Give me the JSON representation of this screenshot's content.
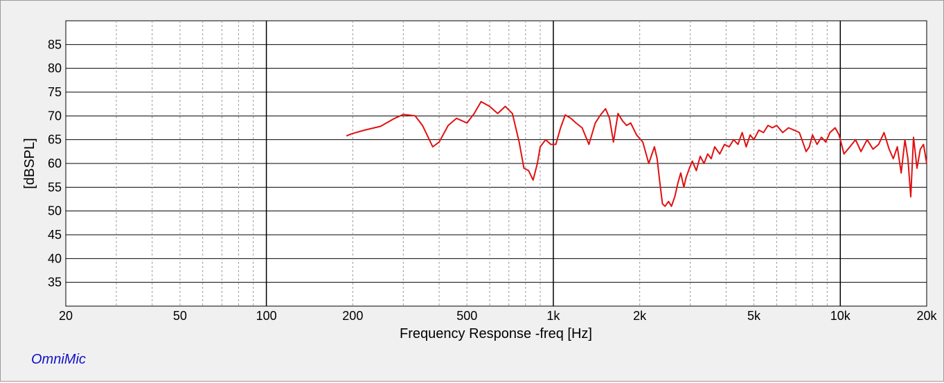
{
  "brand": "OmniMic",
  "colors": {
    "trace": "#e01010",
    "background": "#f0f0f0",
    "plot": "#ffffff",
    "grid_major": "#000000",
    "grid_minor": "#9a9a9a",
    "brand": "#1010c8"
  },
  "chart_data": {
    "type": "line",
    "xlabel": "Frequency Response -freq [Hz]",
    "ylabel": "[dBSPL]",
    "x_scale": "log",
    "xlim": [
      20,
      20000
    ],
    "ylim": [
      30,
      90
    ],
    "x_ticks": [
      {
        "value": 20,
        "label": "20"
      },
      {
        "value": 50,
        "label": "50"
      },
      {
        "value": 100,
        "label": "100"
      },
      {
        "value": 200,
        "label": "200"
      },
      {
        "value": 500,
        "label": "500"
      },
      {
        "value": 1000,
        "label": "1k"
      },
      {
        "value": 2000,
        "label": "2k"
      },
      {
        "value": 5000,
        "label": "5k"
      },
      {
        "value": 10000,
        "label": "10k"
      },
      {
        "value": 20000,
        "label": "20k"
      }
    ],
    "y_ticks": [
      35,
      40,
      45,
      50,
      55,
      60,
      65,
      70,
      75,
      80,
      85
    ],
    "grid": true,
    "series": [
      {
        "x": [
          190,
          200,
          220,
          250,
          280,
          300,
          330,
          350,
          380,
          400,
          430,
          460,
          500,
          530,
          560,
          600,
          640,
          680,
          720,
          760,
          790,
          820,
          850,
          880,
          900,
          940,
          980,
          1020,
          1060,
          1100,
          1150,
          1200,
          1260,
          1330,
          1400,
          1460,
          1520,
          1570,
          1620,
          1680,
          1740,
          1800,
          1860,
          1950,
          2050,
          2150,
          2250,
          2300,
          2350,
          2400,
          2450,
          2520,
          2580,
          2650,
          2720,
          2780,
          2850,
          2900,
          2980,
          3050,
          3150,
          3250,
          3350,
          3450,
          3550,
          3650,
          3800,
          3950,
          4100,
          4250,
          4400,
          4550,
          4700,
          4850,
          5000,
          5200,
          5400,
          5600,
          5800,
          6000,
          6300,
          6600,
          6900,
          7200,
          7400,
          7600,
          7800,
          8000,
          8300,
          8600,
          8900,
          9200,
          9600,
          9900,
          10300,
          10800,
          11300,
          11800,
          12400,
          13000,
          13600,
          14200,
          14800,
          15300,
          15800,
          16300,
          16800,
          17200,
          17600,
          18000,
          18500,
          19000,
          19500,
          20000
        ],
        "y": [
          65.8,
          66.3,
          67.0,
          67.8,
          69.5,
          70.3,
          70.0,
          68.0,
          63.5,
          64.5,
          68.0,
          69.5,
          68.5,
          70.5,
          73.0,
          72.0,
          70.5,
          72.0,
          70.5,
          64.5,
          59.0,
          58.5,
          56.5,
          60.0,
          63.5,
          65.0,
          64.0,
          64.0,
          67.5,
          70.2,
          69.5,
          68.5,
          67.5,
          64.0,
          68.5,
          70.2,
          71.5,
          69.5,
          64.5,
          70.5,
          69.0,
          68.0,
          68.5,
          66.0,
          64.5,
          60.0,
          63.5,
          61.0,
          56.0,
          51.5,
          51.0,
          52.0,
          51.0,
          53.0,
          56.0,
          58.0,
          55.0,
          57.0,
          59.0,
          60.5,
          58.5,
          61.5,
          60.0,
          62.0,
          61.0,
          63.5,
          62.0,
          64.0,
          63.5,
          65.0,
          64.0,
          66.5,
          63.5,
          66.0,
          65.0,
          67.0,
          66.5,
          68.0,
          67.5,
          68.0,
          66.5,
          67.5,
          67.0,
          66.5,
          64.5,
          62.5,
          63.5,
          66.0,
          64.0,
          65.5,
          64.5,
          66.5,
          67.5,
          66.0,
          62.0,
          63.5,
          65.0,
          62.5,
          65.0,
          63.0,
          64.0,
          66.5,
          63.0,
          61.0,
          63.5,
          58.0,
          65.0,
          61.0,
          53.0,
          65.5,
          59.0,
          63.0,
          64.0,
          60.0
        ]
      }
    ]
  }
}
